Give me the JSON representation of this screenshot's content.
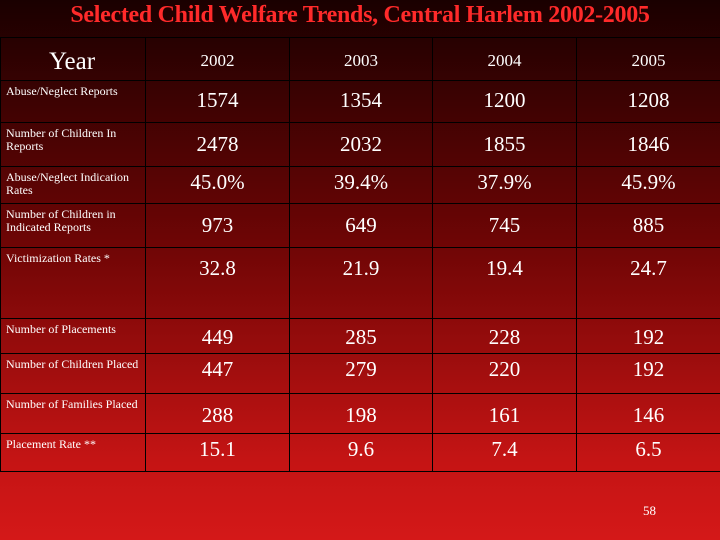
{
  "title": "Selected Child Welfare Trends, Central Harlem 2002-2005",
  "table": {
    "header_label": "Year",
    "years": [
      "2002",
      "2003",
      "2004",
      "2005"
    ],
    "rows": [
      {
        "label": "Abuse/Neglect Reports",
        "values": [
          "1574",
          "1354",
          "1200",
          "1208"
        ]
      },
      {
        "label": "Number of Children In Reports",
        "values": [
          "2478",
          "2032",
          "1855",
          "1846"
        ]
      },
      {
        "label": "Abuse/Neglect Indication Rates",
        "values": [
          "45.0%",
          "39.4%",
          "37.9%",
          "45.9%"
        ]
      },
      {
        "label": "Number of Children in Indicated Reports",
        "values": [
          "973",
          "649",
          "745",
          "885"
        ]
      },
      {
        "label": "Victimization Rates *",
        "values": [
          "32.8",
          "21.9",
          "19.4",
          "24.7"
        ]
      },
      {
        "label": "Number of Placements",
        "values": [
          "449",
          "285",
          "228",
          "192"
        ]
      },
      {
        "label": "Number of Children Placed",
        "values": [
          "447",
          "279",
          "220",
          "192"
        ]
      },
      {
        "label": "Number of Families Placed",
        "values": [
          "288",
          "198",
          "161",
          "146"
        ]
      },
      {
        "label": "Placement Rate **",
        "values": [
          "15.1",
          "9.6",
          "7.4",
          "6.5"
        ]
      }
    ]
  },
  "page_number": "58"
}
